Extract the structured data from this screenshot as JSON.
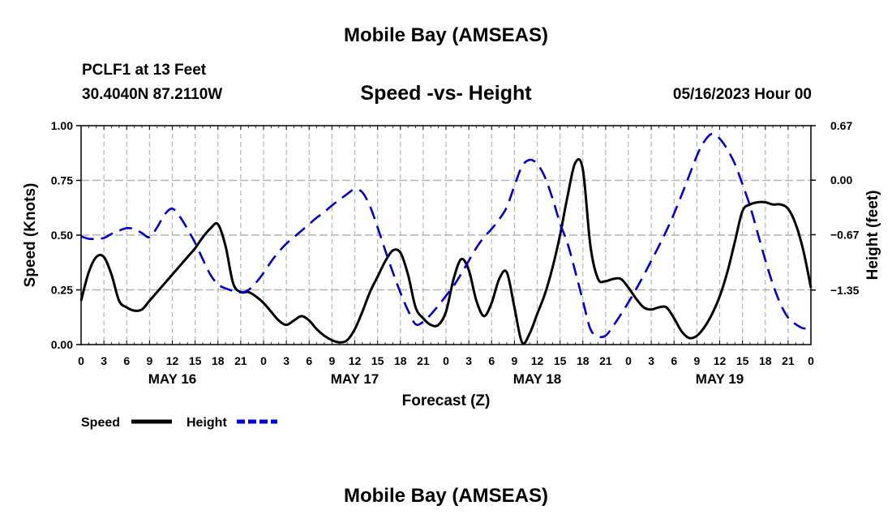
{
  "header": {
    "title": "Mobile Bay (AMSEAS)",
    "station": "PCLF1 at 13 Feet",
    "coords": "30.4040N  87.2110W",
    "subtitle": "Speed -vs- Height",
    "datetime": "05/16/2023 Hour 00"
  },
  "footer": {
    "title": "Mobile Bay (AMSEAS)"
  },
  "colors": {
    "speed": "#000000",
    "height": "#0000cc",
    "grid": "#b4b4b4"
  },
  "chart_data": {
    "type": "line",
    "xlabel": "Forecast (Z)",
    "ylabel": "Speed (Knots)",
    "y2label": "Height (feet)",
    "x_range_hours": [
      0,
      96
    ],
    "ylim": [
      0,
      1
    ],
    "y2lim": [
      -2.02,
      0.67
    ],
    "y_ticks": [
      {
        "value": 0,
        "label": "0.00"
      },
      {
        "value": 0.25,
        "label": "0.25"
      },
      {
        "value": 0.5,
        "label": "0.50"
      },
      {
        "value": 0.75,
        "label": "0.75"
      },
      {
        "value": 1.0,
        "label": "1.00"
      }
    ],
    "y2_ticks": [
      {
        "value": 0.67,
        "label": "0.67"
      },
      {
        "value": 0.0,
        "label": "0.00"
      },
      {
        "value": -0.67,
        "label": "−0.67"
      },
      {
        "value": -1.35,
        "label": "−1.35"
      }
    ],
    "x_tick_labels": [
      "0",
      "3",
      "6",
      "9",
      "12",
      "15",
      "18",
      "21",
      "0",
      "3",
      "6",
      "9",
      "12",
      "15",
      "18",
      "21",
      "0",
      "3",
      "6",
      "9",
      "12",
      "15",
      "18",
      "21",
      "0",
      "3",
      "6",
      "9",
      "12",
      "15",
      "18",
      "21",
      "0"
    ],
    "day_labels": [
      {
        "hour": 12,
        "label": "MAY 16"
      },
      {
        "hour": 36,
        "label": "MAY 17"
      },
      {
        "hour": 60,
        "label": "MAY 18"
      },
      {
        "hour": 84,
        "label": "MAY 19"
      }
    ],
    "series": [
      {
        "name": "Speed",
        "axis": "left",
        "style": "solid",
        "x": [
          0,
          1,
          2,
          3,
          4,
          5,
          6,
          7,
          8,
          9,
          10,
          11,
          12,
          13,
          14,
          15,
          16,
          17,
          18,
          19,
          20,
          21,
          22,
          23,
          24,
          25,
          26,
          27,
          28,
          29,
          30,
          31,
          32,
          33,
          34,
          35,
          36,
          37,
          38,
          39,
          40,
          41,
          42,
          43,
          44,
          45,
          46,
          47,
          48,
          49,
          50,
          51,
          52,
          53,
          54,
          55,
          56,
          57,
          58,
          59,
          60,
          61,
          62,
          63,
          64,
          65,
          66,
          67,
          68,
          69,
          70,
          71,
          72,
          73,
          74,
          75,
          76,
          77,
          78,
          79,
          80,
          81,
          82,
          83,
          84,
          85,
          86,
          87,
          88,
          89,
          90,
          91,
          92,
          93,
          94,
          95,
          96
        ],
        "values": [
          0.2,
          0.33,
          0.4,
          0.4,
          0.32,
          0.2,
          0.17,
          0.155,
          0.16,
          0.2,
          0.24,
          0.28,
          0.32,
          0.36,
          0.4,
          0.44,
          0.49,
          0.53,
          0.55,
          0.45,
          0.28,
          0.24,
          0.24,
          0.22,
          0.19,
          0.15,
          0.11,
          0.09,
          0.11,
          0.13,
          0.11,
          0.07,
          0.04,
          0.02,
          0.01,
          0.02,
          0.07,
          0.15,
          0.24,
          0.31,
          0.38,
          0.43,
          0.42,
          0.32,
          0.17,
          0.12,
          0.09,
          0.09,
          0.15,
          0.3,
          0.39,
          0.34,
          0.2,
          0.13,
          0.19,
          0.3,
          0.33,
          0.17,
          0.01,
          0.05,
          0.14,
          0.23,
          0.35,
          0.5,
          0.68,
          0.83,
          0.8,
          0.45,
          0.3,
          0.29,
          0.3,
          0.3,
          0.26,
          0.21,
          0.17,
          0.16,
          0.17,
          0.17,
          0.12,
          0.06,
          0.03,
          0.04,
          0.08,
          0.14,
          0.22,
          0.33,
          0.47,
          0.61,
          0.64,
          0.65,
          0.65,
          0.64,
          0.64,
          0.62,
          0.55,
          0.43,
          0.26
        ]
      },
      {
        "name": "Height",
        "axis": "right",
        "style": "dashed",
        "x": [
          0,
          1,
          2,
          3,
          4,
          5,
          6,
          7,
          8,
          9,
          10,
          11,
          12,
          13,
          14,
          15,
          16,
          17,
          18,
          19,
          20,
          21,
          22,
          23,
          24,
          25,
          26,
          27,
          28,
          29,
          30,
          31,
          32,
          33,
          34,
          35,
          36,
          37,
          38,
          39,
          40,
          41,
          42,
          43,
          44,
          45,
          46,
          47,
          48,
          49,
          50,
          51,
          52,
          53,
          54,
          55,
          56,
          57,
          58,
          59,
          60,
          61,
          62,
          63,
          64,
          65,
          66,
          67,
          68,
          69,
          70,
          71,
          72,
          73,
          74,
          75,
          76,
          77,
          78,
          79,
          80,
          81,
          82,
          83,
          84,
          85,
          86,
          87,
          88,
          89,
          90,
          91,
          92,
          93,
          94,
          95,
          96
        ],
        "values": [
          -0.69,
          -0.72,
          -0.72,
          -0.71,
          -0.66,
          -0.62,
          -0.59,
          -0.6,
          -0.65,
          -0.7,
          -0.58,
          -0.42,
          -0.35,
          -0.45,
          -0.6,
          -0.77,
          -0.97,
          -1.16,
          -1.28,
          -1.33,
          -1.36,
          -1.38,
          -1.35,
          -1.26,
          -1.14,
          -1.0,
          -0.88,
          -0.78,
          -0.7,
          -0.62,
          -0.54,
          -0.46,
          -0.39,
          -0.31,
          -0.24,
          -0.17,
          -0.11,
          -0.15,
          -0.32,
          -0.58,
          -0.86,
          -1.13,
          -1.38,
          -1.6,
          -1.77,
          -1.74,
          -1.65,
          -1.54,
          -1.42,
          -1.3,
          -1.15,
          -0.99,
          -0.83,
          -0.7,
          -0.6,
          -0.48,
          -0.33,
          -0.07,
          0.17,
          0.25,
          0.2,
          0.04,
          -0.22,
          -0.53,
          -0.78,
          -1.12,
          -1.48,
          -1.83,
          -1.92,
          -1.91,
          -1.79,
          -1.65,
          -1.5,
          -1.34,
          -1.17,
          -0.99,
          -0.81,
          -0.62,
          -0.41,
          -0.18,
          0.06,
          0.3,
          0.48,
          0.57,
          0.51,
          0.38,
          0.2,
          -0.05,
          -0.32,
          -0.65,
          -0.98,
          -1.28,
          -1.52,
          -1.69,
          -1.77,
          -1.82,
          -1.82
        ]
      }
    ],
    "legend": [
      {
        "label": "Speed",
        "series": "Speed"
      },
      {
        "label": "Height",
        "series": "Height"
      }
    ]
  }
}
